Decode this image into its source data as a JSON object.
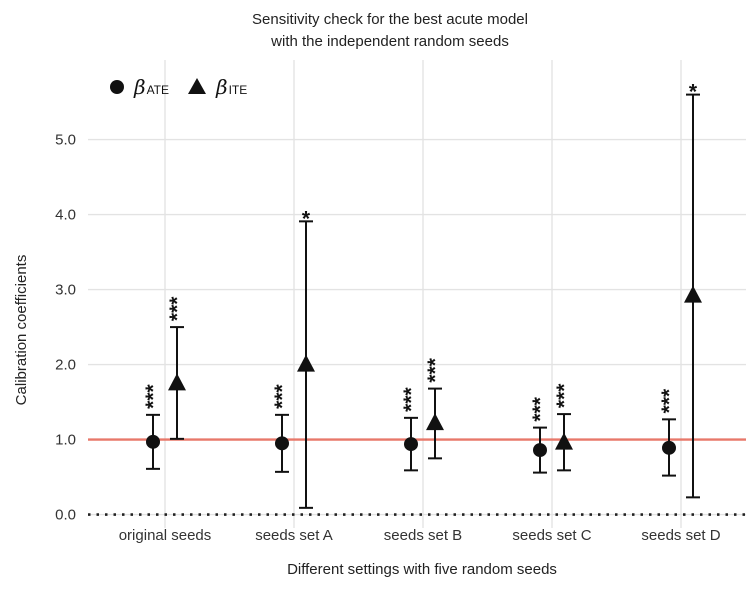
{
  "chart_data": {
    "type": "scatter",
    "title": "Sensitivity check for the best acute model\nwith the independent random seeds",
    "xlabel": "Different settings with five random seeds",
    "ylabel": "Calibration coefficients",
    "categories": [
      "original seeds",
      "seeds set A",
      "seeds set B",
      "seeds set C",
      "seeds set D"
    ],
    "ylim": [
      -0.1,
      5.75
    ],
    "yticks": [
      0.0,
      1.0,
      2.0,
      3.0,
      4.0,
      5.0
    ],
    "ytick_labels": [
      "0.0",
      "1.0",
      "2.0",
      "3.0",
      "4.0",
      "5.0"
    ],
    "reference_lines": [
      {
        "y": 1.0,
        "style": "solid",
        "color": "#e8786a"
      },
      {
        "y": 0.0,
        "style": "dotted",
        "color": "#222222"
      }
    ],
    "grid": true,
    "legend_position": "top-left",
    "series": [
      {
        "name": "βATE",
        "marker": "circle",
        "values": [
          0.97,
          0.95,
          0.94,
          0.86,
          0.89
        ],
        "lower": [
          0.61,
          0.57,
          0.59,
          0.56,
          0.52
        ],
        "upper": [
          1.33,
          1.33,
          1.29,
          1.16,
          1.27
        ],
        "significance": [
          "***",
          "***",
          "***",
          "***",
          "***"
        ]
      },
      {
        "name": "βITE",
        "marker": "triangle",
        "values": [
          1.75,
          2.0,
          1.22,
          0.96,
          2.92
        ],
        "lower": [
          1.01,
          0.09,
          0.75,
          0.59,
          0.23
        ],
        "upper": [
          2.5,
          3.91,
          1.68,
          1.34,
          5.6
        ],
        "significance": [
          "***",
          "*",
          "***",
          "***",
          "*"
        ]
      }
    ],
    "legend": [
      {
        "symbol": "β",
        "subscript": "ATE"
      },
      {
        "symbol": "β",
        "subscript": "ITE"
      }
    ]
  }
}
